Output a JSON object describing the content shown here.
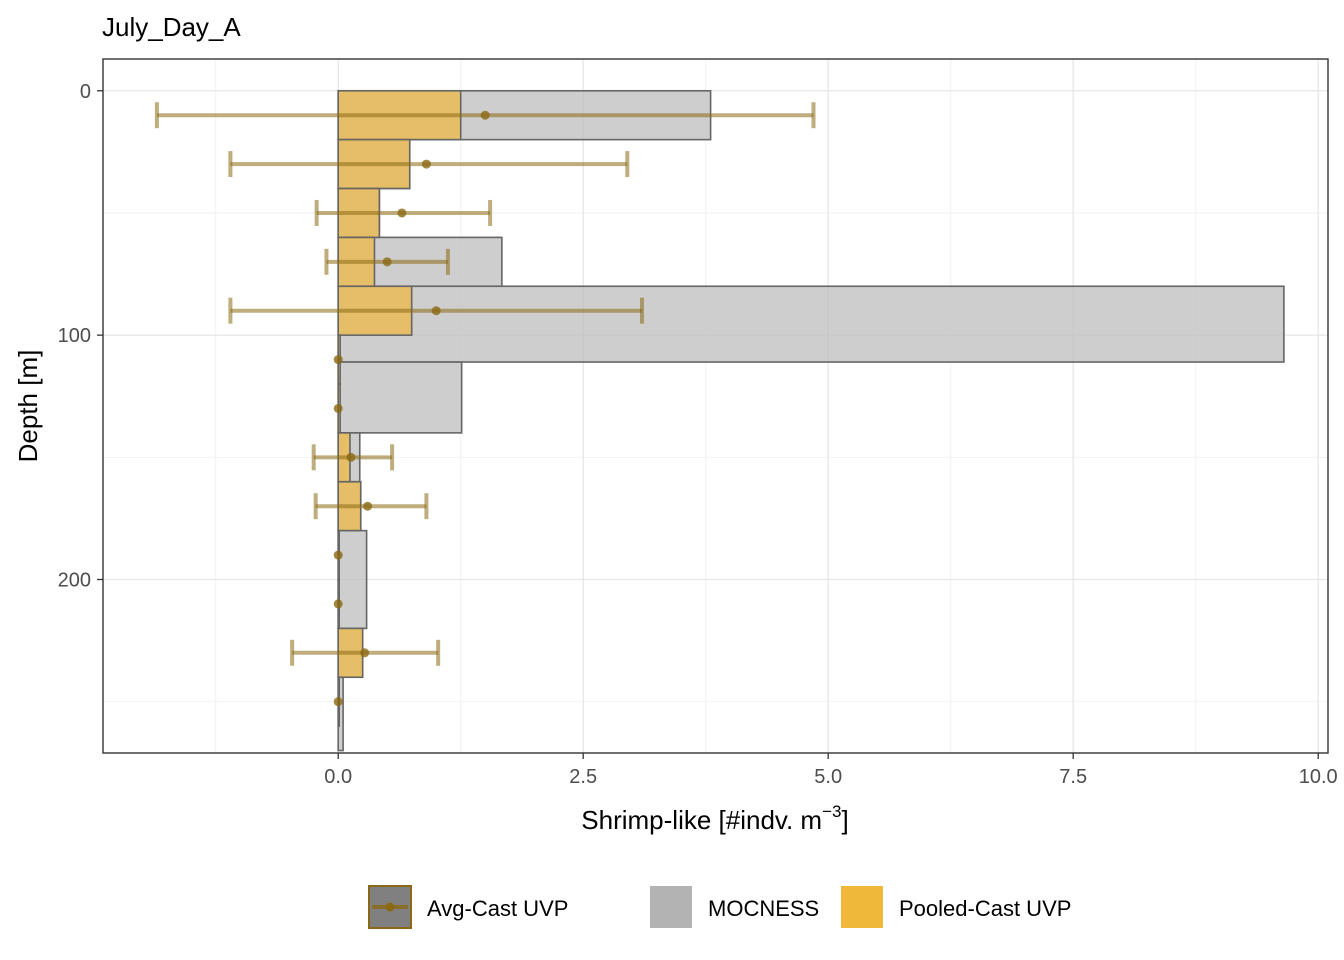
{
  "chart_data": {
    "type": "bar",
    "orientation": "horizontal",
    "title": "July_Day_A",
    "xlabel": "Shrimp-like [#indv. m",
    "xlabel_superscript": "−3",
    "xlabel_suffix": "]",
    "ylabel": "Depth [m]",
    "xlim": [
      -2.4,
      10.1
    ],
    "ylim": [
      271,
      -13
    ],
    "y_reversed": true,
    "x_ticks": [
      0.0,
      2.5,
      5.0,
      7.5,
      10.0
    ],
    "x_tick_labels": [
      "0.0",
      "2.5",
      "5.0",
      "7.5",
      "10.0"
    ],
    "y_ticks": [
      0,
      100,
      200
    ],
    "y_tick_labels": [
      "0",
      "100",
      "200"
    ],
    "grid": true,
    "legend_position": "bottom",
    "colors": {
      "mocness": "#bdbdbd",
      "pooled": "#f0b83c",
      "avg": "#8b6914",
      "outline": "#666666"
    },
    "series": [
      {
        "name": "MOCNESS",
        "bars": [
          {
            "depth_top": 0,
            "depth_bottom": 20,
            "value": 3.8
          },
          {
            "depth_top": 20,
            "depth_bottom": 40,
            "value": 0.73
          },
          {
            "depth_top": 40,
            "depth_bottom": 60,
            "value": 0.42
          },
          {
            "depth_top": 60,
            "depth_bottom": 80,
            "value": 1.67
          },
          {
            "depth_top": 80,
            "depth_bottom": 111,
            "value": 9.65
          },
          {
            "depth_top": 111,
            "depth_bottom": 140,
            "value": 1.26
          },
          {
            "depth_top": 140,
            "depth_bottom": 160,
            "value": 0.22
          },
          {
            "depth_top": 160,
            "depth_bottom": 180,
            "value": 0.23
          },
          {
            "depth_top": 180,
            "depth_bottom": 220,
            "value": 0.29
          },
          {
            "depth_top": 220,
            "depth_bottom": 240,
            "value": 0.25
          },
          {
            "depth_top": 240,
            "depth_bottom": 270,
            "value": 0.05
          }
        ]
      },
      {
        "name": "Pooled-Cast UVP",
        "bars": [
          {
            "depth_top": 0,
            "depth_bottom": 20,
            "value": 1.25
          },
          {
            "depth_top": 20,
            "depth_bottom": 40,
            "value": 0.73
          },
          {
            "depth_top": 40,
            "depth_bottom": 60,
            "value": 0.42
          },
          {
            "depth_top": 60,
            "depth_bottom": 80,
            "value": 0.37
          },
          {
            "depth_top": 80,
            "depth_bottom": 100,
            "value": 0.75
          },
          {
            "depth_top": 100,
            "depth_bottom": 120,
            "value": 0.02
          },
          {
            "depth_top": 120,
            "depth_bottom": 140,
            "value": 0.02
          },
          {
            "depth_top": 140,
            "depth_bottom": 160,
            "value": 0.12
          },
          {
            "depth_top": 160,
            "depth_bottom": 180,
            "value": 0.23
          },
          {
            "depth_top": 180,
            "depth_bottom": 200,
            "value": 0.01
          },
          {
            "depth_top": 200,
            "depth_bottom": 220,
            "value": 0.01
          },
          {
            "depth_top": 220,
            "depth_bottom": 240,
            "value": 0.25
          },
          {
            "depth_top": 240,
            "depth_bottom": 260,
            "value": 0.01
          }
        ]
      },
      {
        "name": "Avg-Cast UVP",
        "points": [
          {
            "depth": 10,
            "value": 1.5,
            "low": -1.85,
            "high": 4.85
          },
          {
            "depth": 30,
            "value": 0.9,
            "low": -1.1,
            "high": 2.95
          },
          {
            "depth": 50,
            "value": 0.65,
            "low": -0.22,
            "high": 1.55
          },
          {
            "depth": 70,
            "value": 0.5,
            "low": -0.12,
            "high": 1.12
          },
          {
            "depth": 90,
            "value": 1.0,
            "low": -1.1,
            "high": 3.1
          },
          {
            "depth": 110,
            "value": 0.0,
            "low": 0.0,
            "high": 0.0
          },
          {
            "depth": 130,
            "value": 0.0,
            "low": 0.0,
            "high": 0.0
          },
          {
            "depth": 150,
            "value": 0.13,
            "low": -0.25,
            "high": 0.55
          },
          {
            "depth": 170,
            "value": 0.3,
            "low": -0.23,
            "high": 0.9
          },
          {
            "depth": 190,
            "value": 0.0,
            "low": 0.0,
            "high": 0.0
          },
          {
            "depth": 210,
            "value": 0.0,
            "low": 0.0,
            "high": 0.0
          },
          {
            "depth": 230,
            "value": 0.27,
            "low": -0.47,
            "high": 1.02
          },
          {
            "depth": 250,
            "value": 0.0,
            "low": 0.0,
            "high": 0.0
          }
        ]
      }
    ],
    "legend": [
      {
        "label": "Avg-Cast UVP",
        "key": "avg"
      },
      {
        "label": "MOCNESS",
        "key": "mocness"
      },
      {
        "label": "Pooled-Cast UVP",
        "key": "pooled"
      }
    ]
  }
}
